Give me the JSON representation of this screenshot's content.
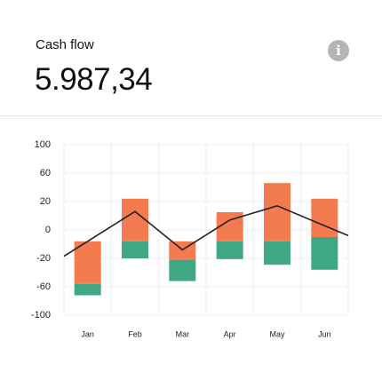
{
  "header": {
    "title": "Cash flow",
    "amount": "5.987,34"
  },
  "chart_data": {
    "type": "floating-bar-line",
    "categories": [
      "Jan",
      "Feb",
      "Mar",
      "Apr",
      "May",
      "Jun"
    ],
    "base": [
      -8,
      -8,
      -8,
      -8,
      -8,
      -5
    ],
    "series": [
      {
        "color": "#f47a4f",
        "values": [
          -48,
          32,
          -14,
          20.5,
          54,
          29
        ]
      },
      {
        "color": "#3fa882",
        "values": [
          -16,
          -12,
          -30,
          -13,
          -21,
          -31
        ]
      }
    ],
    "line": {
      "color": "#222222",
      "values": [
        -8,
        13,
        -14,
        7,
        17,
        3
      ]
    },
    "ylim": [
      100,
      -100
    ],
    "yticks": [
      100,
      60,
      20,
      0,
      -20,
      -60,
      -100
    ],
    "scale": "piecewise-ticks",
    "grid": true
  }
}
